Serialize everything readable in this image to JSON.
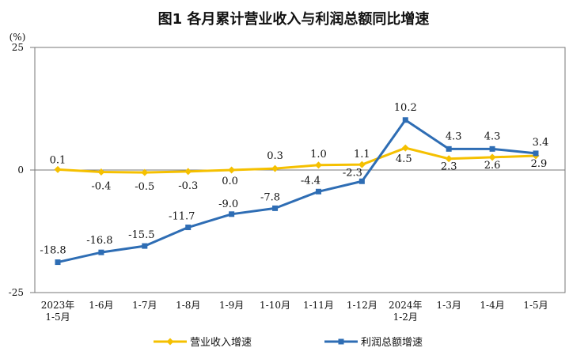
{
  "chart_data": {
    "type": "line",
    "title": "图1  各月累计营业收入与利润总额同比增速",
    "y_unit": "(%)",
    "ylim": [
      -25,
      25
    ],
    "y_ticks": [
      "25",
      "0",
      "-25"
    ],
    "categories": [
      [
        "2023年",
        "1-5月"
      ],
      [
        "1-6月"
      ],
      [
        "1-7月"
      ],
      [
        "1-8月"
      ],
      [
        "1-9月"
      ],
      [
        "1-10月"
      ],
      [
        "1-11月"
      ],
      [
        "1-12月"
      ],
      [
        "2024年",
        "1-2月"
      ],
      [
        "1-3月"
      ],
      [
        "1-4月"
      ],
      [
        "1-5月"
      ]
    ],
    "series": [
      {
        "name": "营业收入增速",
        "color": "#F5C000",
        "marker": "diamond",
        "values": [
          0.1,
          -0.4,
          -0.5,
          -0.3,
          0.0,
          0.3,
          1.0,
          1.1,
          4.5,
          2.3,
          2.6,
          2.9
        ],
        "labels": [
          "0.1",
          "-0.4",
          "-0.5",
          "-0.3",
          "0.0",
          "0.3",
          "1.0",
          "1.1",
          "4.5",
          "2.3",
          "2.6",
          "2.9"
        ]
      },
      {
        "name": "利润总额增速",
        "color": "#2E6DB4",
        "marker": "square",
        "values": [
          -18.8,
          -16.8,
          -15.5,
          -11.7,
          -9.0,
          -7.8,
          -4.4,
          -2.3,
          10.2,
          4.3,
          4.3,
          3.4
        ],
        "labels": [
          "-18.8",
          "-16.8",
          "-15.5",
          "-11.7",
          "-9.0",
          "-7.8",
          "-4.4",
          "-2.3",
          "10.2",
          "4.3",
          "4.3",
          "3.4"
        ]
      }
    ]
  }
}
